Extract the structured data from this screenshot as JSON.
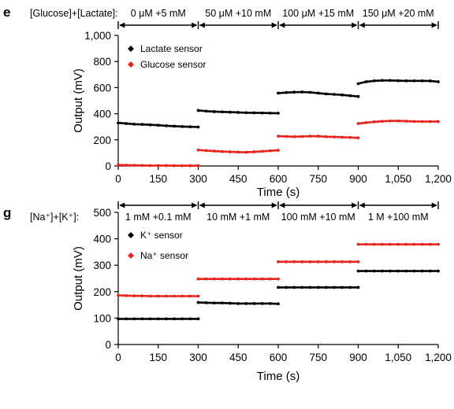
{
  "chart_data": [
    {
      "type": "scatter",
      "panel_letter": "e",
      "condition_label": "[Glucose]+[Lactate]:",
      "conditions": [
        "0 μM +5 mM",
        "50 μM +10 mM",
        "100 μM +15 mM",
        "150 μM +20 mM"
      ],
      "condition_bounds": [
        0,
        300,
        600,
        900,
        1200
      ],
      "xlabel": "Time (s)",
      "ylabel": "Output (mV)",
      "xlim": [
        0,
        1200
      ],
      "ylim": [
        0,
        1000
      ],
      "xticks": [
        0,
        150,
        300,
        450,
        600,
        750,
        900,
        1050,
        1200
      ],
      "xtick_labels": [
        "0",
        "150",
        "300",
        "450",
        "600",
        "750",
        "900",
        "1,050",
        "1,200"
      ],
      "yticks": [
        0,
        200,
        400,
        600,
        800,
        1000
      ],
      "ytick_labels": [
        "0",
        "200",
        "400",
        "600",
        "800",
        "1,000"
      ],
      "grid": false,
      "legend_position": "top-left",
      "series": [
        {
          "name": "Lactate sensor",
          "color": "#000000",
          "segments": [
            {
              "x": [
                0,
                30,
                60,
                90,
                120,
                150,
                180,
                210,
                240,
                270,
                300
              ],
              "y": [
                330,
                325,
                320,
                318,
                315,
                312,
                308,
                305,
                302,
                300,
                298
              ]
            },
            {
              "x": [
                300,
                330,
                360,
                390,
                420,
                450,
                480,
                510,
                540,
                570,
                600
              ],
              "y": [
                425,
                420,
                416,
                414,
                412,
                410,
                408,
                407,
                406,
                405,
                404
              ]
            },
            {
              "x": [
                600,
                630,
                660,
                690,
                720,
                750,
                780,
                810,
                840,
                870,
                900
              ],
              "y": [
                558,
                562,
                565,
                566,
                564,
                558,
                552,
                548,
                544,
                538,
                532
              ]
            },
            {
              "x": [
                900,
                930,
                960,
                990,
                1020,
                1050,
                1080,
                1110,
                1140,
                1170,
                1200
              ],
              "y": [
                630,
                645,
                652,
                655,
                655,
                653,
                652,
                652,
                652,
                651,
                645
              ]
            }
          ]
        },
        {
          "name": "Glucose sensor",
          "color": "#e8241c",
          "segments": [
            {
              "x": [
                0,
                30,
                60,
                90,
                120,
                150,
                180,
                210,
                240,
                270,
                300
              ],
              "y": [
                8,
                6,
                5,
                4,
                3,
                3,
                3,
                2,
                2,
                2,
                2
              ]
            },
            {
              "x": [
                300,
                330,
                360,
                390,
                420,
                450,
                480,
                510,
                540,
                570,
                600
              ],
              "y": [
                122,
                118,
                114,
                110,
                108,
                106,
                105,
                108,
                112,
                116,
                120
              ]
            },
            {
              "x": [
                600,
                630,
                660,
                690,
                720,
                750,
                780,
                810,
                840,
                870,
                900
              ],
              "y": [
                228,
                226,
                224,
                226,
                228,
                228,
                224,
                222,
                220,
                218,
                215
              ]
            },
            {
              "x": [
                900,
                930,
                960,
                990,
                1020,
                1050,
                1080,
                1110,
                1140,
                1170,
                1200
              ],
              "y": [
                325,
                332,
                338,
                342,
                345,
                345,
                343,
                341,
                340,
                340,
                340
              ]
            }
          ]
        }
      ]
    },
    {
      "type": "scatter",
      "panel_letter": "g",
      "condition_label": "[Na⁺]+[K⁺]:",
      "conditions": [
        "1 mM +0.1 mM",
        "10 mM +1 mM",
        "100 mM +10 mM",
        "1 M +100 mM"
      ],
      "condition_bounds": [
        0,
        300,
        600,
        900,
        1200
      ],
      "xlabel": "Time (s)",
      "ylabel": "Output (mV)",
      "xlim": [
        0,
        1200
      ],
      "ylim": [
        0,
        500
      ],
      "xticks": [
        0,
        150,
        300,
        450,
        600,
        750,
        900,
        1050,
        1200
      ],
      "xtick_labels": [
        "0",
        "150",
        "300",
        "450",
        "600",
        "750",
        "900",
        "1,050",
        "1,200"
      ],
      "yticks": [
        0,
        100,
        200,
        300,
        400,
        500
      ],
      "ytick_labels": [
        "0",
        "100",
        "200",
        "300",
        "400",
        "500"
      ],
      "grid": false,
      "legend_position": "top-left",
      "series": [
        {
          "name": "K⁺ sensor",
          "color": "#000000",
          "segments": [
            {
              "x": [
                0,
                30,
                60,
                90,
                120,
                150,
                180,
                210,
                240,
                270,
                300
              ],
              "y": [
                97,
                97,
                97,
                97,
                97,
                97,
                97,
                97,
                97,
                97,
                97
              ]
            },
            {
              "x": [
                300,
                330,
                360,
                390,
                420,
                450,
                480,
                510,
                540,
                570,
                600
              ],
              "y": [
                159,
                158,
                157,
                157,
                156,
                155,
                155,
                155,
                155,
                155,
                154
              ]
            },
            {
              "x": [
                600,
                630,
                660,
                690,
                720,
                750,
                780,
                810,
                840,
                870,
                900
              ],
              "y": [
                216,
                216,
                216,
                216,
                216,
                216,
                216,
                216,
                216,
                216,
                216
              ]
            },
            {
              "x": [
                900,
                930,
                960,
                990,
                1020,
                1050,
                1080,
                1110,
                1140,
                1170,
                1200
              ],
              "y": [
                278,
                278,
                278,
                278,
                278,
                278,
                278,
                278,
                278,
                278,
                278
              ]
            }
          ]
        },
        {
          "name": "Na⁺ sensor",
          "color": "#e8241c",
          "segments": [
            {
              "x": [
                0,
                30,
                60,
                90,
                120,
                150,
                180,
                210,
                240,
                270,
                300
              ],
              "y": [
                186,
                185,
                184,
                184,
                183,
                183,
                183,
                183,
                183,
                183,
                183
              ]
            },
            {
              "x": [
                300,
                330,
                360,
                390,
                420,
                450,
                480,
                510,
                540,
                570,
                600
              ],
              "y": [
                248,
                248,
                248,
                248,
                248,
                248,
                248,
                248,
                248,
                248,
                248
              ]
            },
            {
              "x": [
                600,
                630,
                660,
                690,
                720,
                750,
                780,
                810,
                840,
                870,
                900
              ],
              "y": [
                313,
                313,
                313,
                313,
                313,
                313,
                313,
                313,
                313,
                313,
                313
              ]
            },
            {
              "x": [
                900,
                930,
                960,
                990,
                1020,
                1050,
                1080,
                1110,
                1140,
                1170,
                1200
              ],
              "y": [
                379,
                379,
                379,
                379,
                379,
                379,
                379,
                379,
                379,
                379,
                379
              ]
            }
          ]
        }
      ]
    }
  ]
}
